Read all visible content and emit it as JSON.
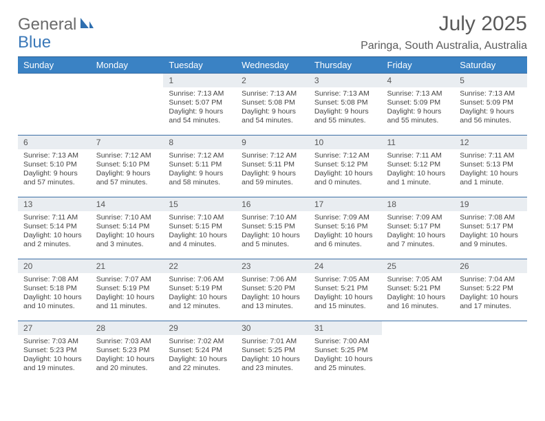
{
  "logo": {
    "general": "General",
    "blue": "Blue"
  },
  "title": "July 2025",
  "location": "Paringa, South Australia, Australia",
  "colors": {
    "header_bg": "#3a82c4",
    "header_border": "#2b5f94",
    "row_border": "#3a6ea5",
    "daynum_bg": "#e9edf1",
    "text": "#444444",
    "title_text": "#5a5a5a",
    "logo_blue": "#3a78b8"
  },
  "weekdays": [
    "Sunday",
    "Monday",
    "Tuesday",
    "Wednesday",
    "Thursday",
    "Friday",
    "Saturday"
  ],
  "weeks": [
    [
      {
        "empty": true
      },
      {
        "empty": true
      },
      {
        "day": "1",
        "sunrise": "Sunrise: 7:13 AM",
        "sunset": "Sunset: 5:07 PM",
        "daylight": "Daylight: 9 hours and 54 minutes."
      },
      {
        "day": "2",
        "sunrise": "Sunrise: 7:13 AM",
        "sunset": "Sunset: 5:08 PM",
        "daylight": "Daylight: 9 hours and 54 minutes."
      },
      {
        "day": "3",
        "sunrise": "Sunrise: 7:13 AM",
        "sunset": "Sunset: 5:08 PM",
        "daylight": "Daylight: 9 hours and 55 minutes."
      },
      {
        "day": "4",
        "sunrise": "Sunrise: 7:13 AM",
        "sunset": "Sunset: 5:09 PM",
        "daylight": "Daylight: 9 hours and 55 minutes."
      },
      {
        "day": "5",
        "sunrise": "Sunrise: 7:13 AM",
        "sunset": "Sunset: 5:09 PM",
        "daylight": "Daylight: 9 hours and 56 minutes."
      }
    ],
    [
      {
        "day": "6",
        "sunrise": "Sunrise: 7:13 AM",
        "sunset": "Sunset: 5:10 PM",
        "daylight": "Daylight: 9 hours and 57 minutes."
      },
      {
        "day": "7",
        "sunrise": "Sunrise: 7:12 AM",
        "sunset": "Sunset: 5:10 PM",
        "daylight": "Daylight: 9 hours and 57 minutes."
      },
      {
        "day": "8",
        "sunrise": "Sunrise: 7:12 AM",
        "sunset": "Sunset: 5:11 PM",
        "daylight": "Daylight: 9 hours and 58 minutes."
      },
      {
        "day": "9",
        "sunrise": "Sunrise: 7:12 AM",
        "sunset": "Sunset: 5:11 PM",
        "daylight": "Daylight: 9 hours and 59 minutes."
      },
      {
        "day": "10",
        "sunrise": "Sunrise: 7:12 AM",
        "sunset": "Sunset: 5:12 PM",
        "daylight": "Daylight: 10 hours and 0 minutes."
      },
      {
        "day": "11",
        "sunrise": "Sunrise: 7:11 AM",
        "sunset": "Sunset: 5:12 PM",
        "daylight": "Daylight: 10 hours and 1 minute."
      },
      {
        "day": "12",
        "sunrise": "Sunrise: 7:11 AM",
        "sunset": "Sunset: 5:13 PM",
        "daylight": "Daylight: 10 hours and 1 minute."
      }
    ],
    [
      {
        "day": "13",
        "sunrise": "Sunrise: 7:11 AM",
        "sunset": "Sunset: 5:14 PM",
        "daylight": "Daylight: 10 hours and 2 minutes."
      },
      {
        "day": "14",
        "sunrise": "Sunrise: 7:10 AM",
        "sunset": "Sunset: 5:14 PM",
        "daylight": "Daylight: 10 hours and 3 minutes."
      },
      {
        "day": "15",
        "sunrise": "Sunrise: 7:10 AM",
        "sunset": "Sunset: 5:15 PM",
        "daylight": "Daylight: 10 hours and 4 minutes."
      },
      {
        "day": "16",
        "sunrise": "Sunrise: 7:10 AM",
        "sunset": "Sunset: 5:15 PM",
        "daylight": "Daylight: 10 hours and 5 minutes."
      },
      {
        "day": "17",
        "sunrise": "Sunrise: 7:09 AM",
        "sunset": "Sunset: 5:16 PM",
        "daylight": "Daylight: 10 hours and 6 minutes."
      },
      {
        "day": "18",
        "sunrise": "Sunrise: 7:09 AM",
        "sunset": "Sunset: 5:17 PM",
        "daylight": "Daylight: 10 hours and 7 minutes."
      },
      {
        "day": "19",
        "sunrise": "Sunrise: 7:08 AM",
        "sunset": "Sunset: 5:17 PM",
        "daylight": "Daylight: 10 hours and 9 minutes."
      }
    ],
    [
      {
        "day": "20",
        "sunrise": "Sunrise: 7:08 AM",
        "sunset": "Sunset: 5:18 PM",
        "daylight": "Daylight: 10 hours and 10 minutes."
      },
      {
        "day": "21",
        "sunrise": "Sunrise: 7:07 AM",
        "sunset": "Sunset: 5:19 PM",
        "daylight": "Daylight: 10 hours and 11 minutes."
      },
      {
        "day": "22",
        "sunrise": "Sunrise: 7:06 AM",
        "sunset": "Sunset: 5:19 PM",
        "daylight": "Daylight: 10 hours and 12 minutes."
      },
      {
        "day": "23",
        "sunrise": "Sunrise: 7:06 AM",
        "sunset": "Sunset: 5:20 PM",
        "daylight": "Daylight: 10 hours and 13 minutes."
      },
      {
        "day": "24",
        "sunrise": "Sunrise: 7:05 AM",
        "sunset": "Sunset: 5:21 PM",
        "daylight": "Daylight: 10 hours and 15 minutes."
      },
      {
        "day": "25",
        "sunrise": "Sunrise: 7:05 AM",
        "sunset": "Sunset: 5:21 PM",
        "daylight": "Daylight: 10 hours and 16 minutes."
      },
      {
        "day": "26",
        "sunrise": "Sunrise: 7:04 AM",
        "sunset": "Sunset: 5:22 PM",
        "daylight": "Daylight: 10 hours and 17 minutes."
      }
    ],
    [
      {
        "day": "27",
        "sunrise": "Sunrise: 7:03 AM",
        "sunset": "Sunset: 5:23 PM",
        "daylight": "Daylight: 10 hours and 19 minutes."
      },
      {
        "day": "28",
        "sunrise": "Sunrise: 7:03 AM",
        "sunset": "Sunset: 5:23 PM",
        "daylight": "Daylight: 10 hours and 20 minutes."
      },
      {
        "day": "29",
        "sunrise": "Sunrise: 7:02 AM",
        "sunset": "Sunset: 5:24 PM",
        "daylight": "Daylight: 10 hours and 22 minutes."
      },
      {
        "day": "30",
        "sunrise": "Sunrise: 7:01 AM",
        "sunset": "Sunset: 5:25 PM",
        "daylight": "Daylight: 10 hours and 23 minutes."
      },
      {
        "day": "31",
        "sunrise": "Sunrise: 7:00 AM",
        "sunset": "Sunset: 5:25 PM",
        "daylight": "Daylight: 10 hours and 25 minutes."
      },
      {
        "empty": true
      },
      {
        "empty": true
      }
    ]
  ]
}
